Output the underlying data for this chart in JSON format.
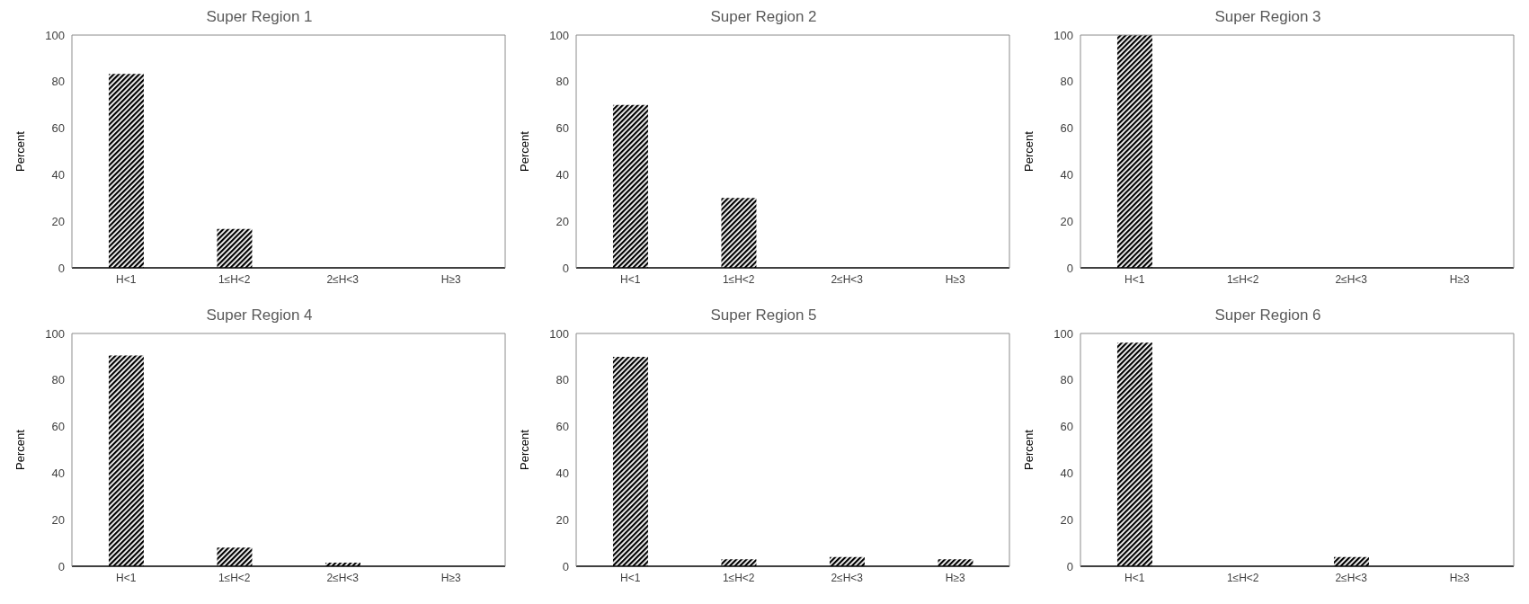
{
  "chart_data": [
    {
      "type": "bar",
      "title": "Super Region 1",
      "ylabel": "Percent",
      "categories": [
        "H<1",
        "1≤H<2",
        "2≤H<3",
        "H≥3"
      ],
      "values": [
        83.3,
        16.7,
        0,
        0
      ],
      "color": "#000000",
      "ylim": [
        0,
        100
      ],
      "yticks": [
        0,
        20,
        40,
        60,
        80,
        100
      ],
      "grid": false,
      "legend": false
    },
    {
      "type": "bar",
      "title": "Super Region 2",
      "ylabel": "Percent",
      "categories": [
        "H<1",
        "1≤H<2",
        "2≤H<3",
        "H≥3"
      ],
      "values": [
        70,
        30,
        0,
        0
      ],
      "color": "#000000",
      "ylim": [
        0,
        100
      ],
      "yticks": [
        0,
        20,
        40,
        60,
        80,
        100
      ],
      "grid": false,
      "legend": false
    },
    {
      "type": "bar",
      "title": "Super Region 3",
      "ylabel": "Percent",
      "categories": [
        "H<1",
        "1≤H<2",
        "2≤H<3",
        "H≥3"
      ],
      "values": [
        100,
        0,
        0,
        0
      ],
      "color": "#000000",
      "ylim": [
        0,
        100
      ],
      "yticks": [
        0,
        20,
        40,
        60,
        80,
        100
      ],
      "grid": false,
      "legend": false
    },
    {
      "type": "bar",
      "title": "Super Region 4",
      "ylabel": "Percent",
      "categories": [
        "H<1",
        "1≤H<2",
        "2≤H<3",
        "H≥3"
      ],
      "values": [
        90.5,
        8,
        1.5,
        0
      ],
      "color": "#000000",
      "ylim": [
        0,
        100
      ],
      "yticks": [
        0,
        20,
        40,
        60,
        80,
        100
      ],
      "grid": false,
      "legend": false
    },
    {
      "type": "bar",
      "title": "Super Region 5",
      "ylabel": "Percent",
      "categories": [
        "H<1",
        "1≤H<2",
        "2≤H<3",
        "H≥3"
      ],
      "values": [
        90,
        3,
        4,
        3
      ],
      "color": "#000000",
      "ylim": [
        0,
        100
      ],
      "yticks": [
        0,
        20,
        40,
        60,
        80,
        100
      ],
      "grid": false,
      "legend": false
    },
    {
      "type": "bar",
      "title": "Super Region 6",
      "ylabel": "Percent",
      "categories": [
        "H<1",
        "1≤H<2",
        "2≤H<3",
        "H≥3"
      ],
      "values": [
        96,
        0,
        4,
        0
      ],
      "color": "#000000",
      "ylim": [
        0,
        100
      ],
      "yticks": [
        0,
        20,
        40,
        60,
        80,
        100
      ],
      "grid": false,
      "legend": false
    }
  ]
}
